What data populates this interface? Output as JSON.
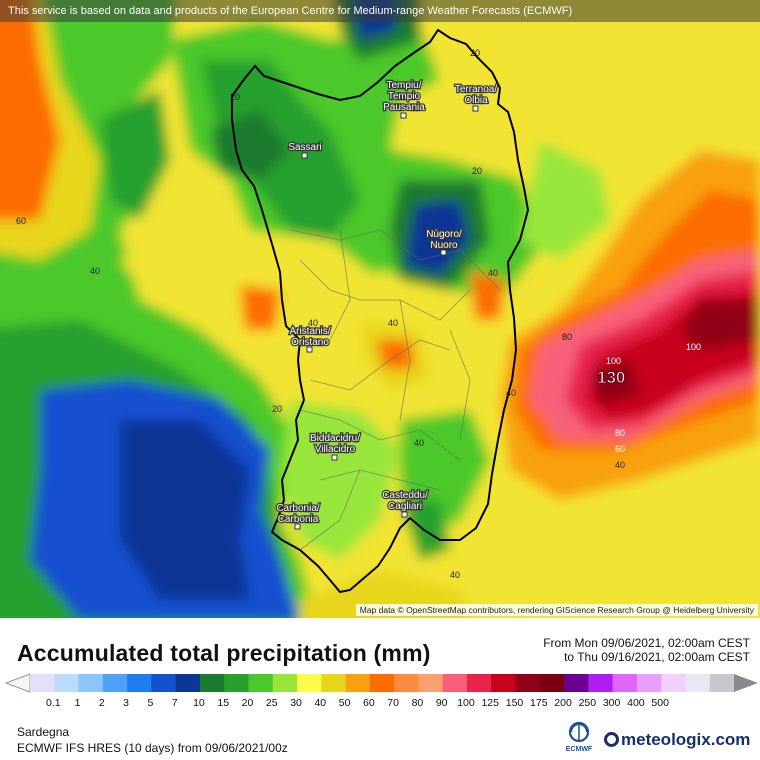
{
  "notice": "This service is based on data and products of the European Centre for Medium-range Weather Forecasts (ECMWF)",
  "attribution": "Map data © OpenStreetMap contributors, rendering GIScience Research Group @ Heidelberg University",
  "title": "Accumulated total precipitation (mm)",
  "period": {
    "from": "From Mon 09/06/2021, 02:00am CEST",
    "to": "to Thu 09/16/2021, 02:00am CEST"
  },
  "region": "Sardegna",
  "model": "ECMWF IFS HRES (10 days) from 09/06/2021/00z",
  "brand": "meteologix.com",
  "ecmwf_logo": "ECMWF",
  "cities": [
    {
      "line1": "Tempiu/",
      "line2": "Tempio",
      "line3": "Pausania"
    },
    {
      "line1": "Terranoa/",
      "line2": "Olbia",
      "line3": ""
    },
    {
      "line1": "Sassari",
      "line2": "",
      "line3": ""
    },
    {
      "line1": "Nùgoro/",
      "line2": "Nuoro",
      "line3": ""
    },
    {
      "line1": "Aristanis/",
      "line2": "Oristano",
      "line3": ""
    },
    {
      "line1": "Biddacidru/",
      "line2": "Villacidro",
      "line3": ""
    },
    {
      "line1": "Casteddu/",
      "line2": "Cagliari",
      "line3": ""
    },
    {
      "line1": "Carbonia/",
      "line2": "Carbonia",
      "line3": ""
    }
  ],
  "contour_labels": [
    "20",
    "20",
    "60",
    "40",
    "40",
    "40",
    "40",
    "20",
    "20",
    "40",
    "80",
    "100",
    "100",
    "80",
    "60",
    "40",
    "40",
    "40"
  ],
  "max_value": "130",
  "legend": {
    "ticks": [
      "0.1",
      "1",
      "2",
      "3",
      "5",
      "7",
      "10",
      "15",
      "20",
      "25",
      "30",
      "40",
      "50",
      "60",
      "70",
      "80",
      "90",
      "100",
      "125",
      "150",
      "175",
      "200",
      "250",
      "300",
      "400",
      "500"
    ],
    "colors": [
      "#e4e0f8",
      "#bcdcfc",
      "#8cc4fc",
      "#50a2f6",
      "#1e7ef0",
      "#1450d0",
      "#0c3696",
      "#1c7a2e",
      "#28a02e",
      "#4cc82c",
      "#98e63a",
      "#fcfc4c",
      "#e8d61c",
      "#f8a010",
      "#fc6c00",
      "#fc8c40",
      "#fca070",
      "#f8607a",
      "#e82248",
      "#c8001c",
      "#900016",
      "#780010",
      "#6c0090",
      "#b01cf4",
      "#e066fc",
      "#e8a0fc",
      "#f0d0fc",
      "#e8e8f4",
      "#c8c8cc"
    ]
  }
}
